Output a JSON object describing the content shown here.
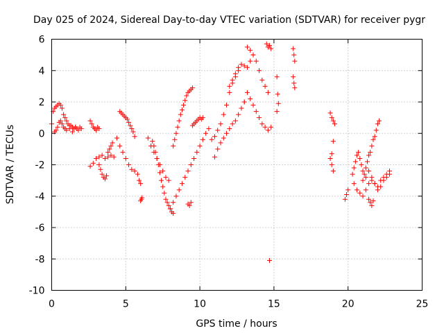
{
  "chart_data": {
    "type": "scatter",
    "title": "Day 025 of 2024, Sidereal Day-to-day VTEC variation (SDTVAR) for receiver pygr",
    "xlabel": "GPS time / hours",
    "ylabel": "SDTVAR / TECUs",
    "xlim": [
      0,
      25
    ],
    "ylim": [
      -10,
      6
    ],
    "xticks": [
      0,
      5,
      10,
      15,
      20,
      25
    ],
    "yticks": [
      -10,
      -8,
      -6,
      -4,
      -2,
      0,
      2,
      4,
      6
    ],
    "xtick_labels": [
      "0",
      "5",
      "10",
      "15",
      "20",
      "25"
    ],
    "ytick_labels": [
      "-10",
      "-8",
      "-6",
      "-4",
      "-2",
      "0",
      "2",
      "4",
      "6"
    ],
    "grid": true,
    "marker": "+",
    "color": "#ff0000",
    "series": [
      {
        "name": "SDTVAR",
        "x": [
          0.0,
          0.1,
          0.2,
          0.3,
          0.4,
          0.5,
          0.6,
          0.7,
          0.8,
          0.9,
          1.0,
          1.1,
          1.2,
          1.3,
          1.4,
          1.5,
          1.6,
          1.7,
          1.8,
          1.9,
          2.0,
          0.2,
          0.3,
          0.4,
          0.5,
          0.6,
          0.7,
          0.8,
          0.9,
          1.0,
          1.2,
          1.4,
          1.6,
          2.6,
          2.7,
          2.8,
          2.9,
          3.0,
          3.1,
          3.2,
          2.6,
          2.8,
          3.0,
          3.2,
          3.4,
          3.6,
          3.8,
          4.0,
          4.2,
          3.2,
          3.3,
          3.4,
          3.5,
          3.6,
          3.7,
          3.8,
          3.9,
          4.0,
          4.1,
          4.6,
          4.7,
          4.8,
          4.9,
          5.0,
          5.1,
          5.2,
          5.3,
          5.4,
          5.5,
          5.6,
          4.4,
          4.6,
          4.8,
          5.0,
          5.2,
          5.4,
          5.6,
          5.8,
          5.9,
          6.0,
          6.1,
          6.05,
          6.0,
          6.8,
          6.9,
          7.0,
          7.1,
          7.2,
          7.3,
          7.4,
          7.5,
          7.6,
          7.7,
          7.8,
          7.9,
          8.0,
          8.1,
          8.2,
          6.5,
          6.7,
          6.9,
          7.1,
          7.3,
          7.5,
          7.7,
          7.9,
          8.2,
          8.3,
          8.4,
          8.5,
          8.6,
          8.7,
          8.8,
          8.9,
          9.0,
          9.1,
          9.2,
          9.3,
          9.4,
          9.5,
          8.0,
          8.2,
          8.4,
          8.6,
          8.8,
          9.0,
          9.2,
          9.4,
          9.6,
          9.8,
          10.0,
          10.2,
          10.4,
          10.6,
          9.5,
          9.6,
          9.7,
          9.8,
          9.9,
          10.0,
          10.1,
          10.2,
          9.2,
          9.3,
          9.4,
          10.8,
          11.0,
          11.2,
          11.4,
          11.6,
          11.8,
          12.0,
          12.2,
          12.4,
          12.6,
          11.0,
          11.2,
          11.4,
          11.6,
          11.8,
          12.0,
          12.2,
          12.4,
          12.6,
          12.8,
          13.0,
          12.0,
          12.2,
          12.4,
          12.6,
          12.8,
          13.0,
          13.2,
          13.4,
          13.6,
          13.2,
          13.4,
          13.6,
          13.8,
          14.0,
          14.2,
          14.4,
          14.6,
          13.0,
          13.2,
          13.4,
          13.6,
          13.8,
          14.0,
          14.2,
          14.4,
          14.6,
          14.8,
          14.5,
          14.6,
          14.7,
          14.8,
          14.7,
          15.2,
          15.25,
          15.3,
          15.2,
          16.3,
          16.35,
          16.4,
          16.3,
          16.35,
          16.4,
          18.8,
          18.9,
          19.0,
          19.1,
          19.0,
          18.9,
          18.8,
          18.9,
          19.0,
          19.8,
          19.9,
          20.0,
          20.3,
          20.4,
          20.5,
          20.6,
          20.7,
          20.8,
          20.9,
          21.0,
          21.1,
          21.2,
          21.3,
          21.4,
          21.5,
          21.6,
          21.7,
          21.8,
          21.9,
          22.0,
          22.1,
          20.4,
          20.6,
          20.8,
          21.0,
          21.2,
          21.4,
          21.6,
          21.8,
          22.0,
          22.2,
          22.4,
          22.6,
          22.8,
          21.0,
          21.2,
          21.4,
          21.6,
          21.8,
          22.0,
          22.2,
          22.4,
          22.6,
          22.8,
          21.4,
          21.5,
          21.6,
          21.7
        ],
        "y": [
          0.6,
          1.4,
          1.6,
          1.7,
          1.8,
          1.9,
          1.8,
          1.6,
          1.2,
          1.0,
          0.8,
          0.6,
          0.5,
          0.5,
          0.4,
          0.3,
          0.4,
          0.3,
          0.2,
          0.4,
          0.3,
          0.1,
          0.2,
          0.4,
          0.7,
          0.8,
          0.6,
          0.4,
          0.3,
          0.2,
          0.3,
          0.1,
          0.4,
          0.8,
          0.6,
          0.4,
          0.3,
          0.2,
          0.4,
          0.3,
          -2.1,
          -1.9,
          -1.6,
          -1.5,
          -1.4,
          -1.6,
          -1.5,
          -1.4,
          -1.5,
          -2.0,
          -2.3,
          -2.6,
          -2.8,
          -2.9,
          -2.7,
          -1.2,
          -1.0,
          -0.8,
          -0.6,
          1.4,
          1.3,
          1.2,
          1.1,
          1.0,
          0.9,
          0.7,
          0.5,
          0.3,
          0.1,
          -0.2,
          -0.3,
          -0.8,
          -1.2,
          -1.6,
          -2.0,
          -2.3,
          -2.4,
          -2.6,
          -3.0,
          -3.2,
          -4.1,
          -4.2,
          -4.3,
          -0.5,
          -0.8,
          -1.2,
          -1.6,
          -2.0,
          -2.5,
          -3.0,
          -3.4,
          -3.8,
          -4.2,
          -4.4,
          -4.6,
          -4.8,
          -5.0,
          -5.1,
          -0.3,
          -0.8,
          -1.2,
          -1.6,
          -2.0,
          -2.4,
          -2.8,
          -3.0,
          -0.8,
          -0.4,
          0.0,
          0.4,
          0.8,
          1.2,
          1.5,
          1.8,
          2.1,
          2.4,
          2.6,
          2.7,
          2.8,
          2.9,
          -4.8,
          -4.4,
          -4.0,
          -3.6,
          -3.2,
          -2.8,
          -2.4,
          -2.0,
          -1.6,
          -1.2,
          -0.8,
          -0.4,
          0.0,
          0.3,
          0.5,
          0.6,
          0.7,
          0.8,
          0.9,
          1.0,
          0.9,
          1.0,
          -4.5,
          -4.6,
          -4.4,
          -0.4,
          -0.2,
          0.2,
          0.6,
          1.2,
          1.8,
          2.6,
          3.2,
          3.6,
          4.0,
          -1.5,
          -1.0,
          -0.6,
          -0.3,
          0.0,
          0.3,
          0.6,
          0.8,
          1.2,
          1.6,
          2.0,
          3.0,
          3.4,
          3.8,
          4.2,
          4.4,
          4.3,
          4.2,
          4.6,
          5.0,
          5.5,
          5.3,
          5.0,
          4.6,
          4.0,
          3.4,
          3.0,
          2.6,
          2.0,
          2.6,
          2.2,
          1.8,
          1.4,
          1.0,
          0.6,
          0.4,
          0.2,
          0.4,
          5.7,
          5.5,
          5.6,
          5.4,
          -8.1,
          3.6,
          2.5,
          1.9,
          1.4,
          5.4,
          5.0,
          4.6,
          3.6,
          3.2,
          2.9,
          1.3,
          1.0,
          0.8,
          0.6,
          -0.5,
          -1.3,
          -1.6,
          -2.0,
          -2.4,
          -4.2,
          -3.9,
          -3.6,
          -2.6,
          -2.2,
          -1.8,
          -1.4,
          -1.2,
          -1.6,
          -2.0,
          -2.4,
          -2.6,
          -2.2,
          -1.8,
          -1.4,
          -1.2,
          -0.8,
          -0.4,
          -0.2,
          0.2,
          0.6,
          0.8,
          -3.2,
          -3.6,
          -3.8,
          -4.0,
          -3.6,
          -3.2,
          -3.0,
          -3.2,
          -3.6,
          -3.4,
          -3.0,
          -2.8,
          -2.6,
          -3.0,
          -2.8,
          -2.4,
          -2.8,
          -3.2,
          -3.4,
          -3.0,
          -2.8,
          -2.6,
          -2.4,
          -4.2,
          -4.4,
          -4.6,
          -4.3
        ]
      }
    ]
  }
}
